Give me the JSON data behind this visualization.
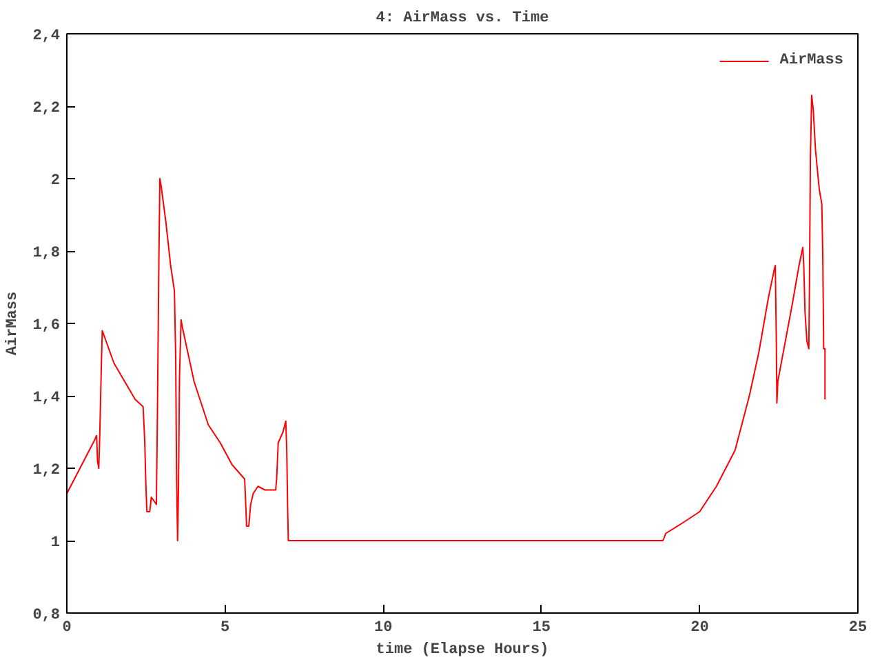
{
  "chart_data": {
    "type": "line",
    "title": "4: AirMass vs. Time",
    "xlabel": "time (Elapse Hours)",
    "ylabel": "AirMass",
    "xlim": [
      0,
      25
    ],
    "ylim": [
      0.8,
      2.4
    ],
    "xticks": [
      0,
      5,
      10,
      15,
      20,
      25
    ],
    "yticks": [
      {
        "value": 0.8,
        "label": "0,8"
      },
      1,
      {
        "value": 1.2,
        "label": "1,2"
      },
      {
        "value": 1.4,
        "label": "1,4"
      },
      {
        "value": 1.6,
        "label": "1,6"
      },
      {
        "value": 1.8,
        "label": "1,8"
      },
      2,
      {
        "value": 2.2,
        "label": "2,2"
      },
      {
        "value": 2.4,
        "label": "2,4"
      }
    ],
    "grid": false,
    "legend": "top right",
    "line_style": "solid",
    "marker": "none",
    "series": [
      {
        "name": "AirMass",
        "color": "#ff0000",
        "x": [
          0,
          0.89,
          0.94,
          0.97,
          1.01,
          1.04,
          1.09,
          1.12,
          1.49,
          2.16,
          2.41,
          2.46,
          2.5,
          2.53,
          2.62,
          2.67,
          2.83,
          2.86,
          2.91,
          2.94,
          2.98,
          3.13,
          3.28,
          3.4,
          3.44,
          3.47,
          3.5,
          3.53,
          3.56,
          3.61,
          3.65,
          4.02,
          4.47,
          4.85,
          5.22,
          5.62,
          5.65,
          5.68,
          5.75,
          5.81,
          5.89,
          6.04,
          6.26,
          6.6,
          6.63,
          6.68,
          6.83,
          6.92,
          6.95,
          6.98,
          7.0,
          18.84,
          18.93,
          19.48,
          20.0,
          20.53,
          21.12,
          21.57,
          21.87,
          22.17,
          22.36,
          22.39,
          22.42,
          22.44,
          22.47,
          22.62,
          22.92,
          23.14,
          23.26,
          23.29,
          23.33,
          23.39,
          23.45,
          23.47,
          23.5,
          23.54,
          23.59,
          23.66,
          23.78,
          23.86,
          23.89,
          23.92,
          23.96,
          23.96
        ],
        "values": [
          1.13,
          1.28,
          1.29,
          1.22,
          1.2,
          1.29,
          1.48,
          1.58,
          1.49,
          1.39,
          1.37,
          1.28,
          1.15,
          1.08,
          1.08,
          1.12,
          1.1,
          1.33,
          1.78,
          2.0,
          1.98,
          1.88,
          1.76,
          1.69,
          1.51,
          1.17,
          1.0,
          1.15,
          1.45,
          1.61,
          1.59,
          1.44,
          1.32,
          1.27,
          1.21,
          1.17,
          1.11,
          1.04,
          1.04,
          1.1,
          1.13,
          1.15,
          1.14,
          1.14,
          1.17,
          1.27,
          1.3,
          1.33,
          1.25,
          1.08,
          1.0,
          1.0,
          1.02,
          1.05,
          1.08,
          1.15,
          1.25,
          1.4,
          1.52,
          1.67,
          1.75,
          1.76,
          1.57,
          1.38,
          1.44,
          1.51,
          1.65,
          1.76,
          1.81,
          1.76,
          1.63,
          1.55,
          1.53,
          1.71,
          2.06,
          2.23,
          2.19,
          2.08,
          1.97,
          1.93,
          1.79,
          1.53,
          1.53,
          1.39
        ]
      }
    ]
  }
}
